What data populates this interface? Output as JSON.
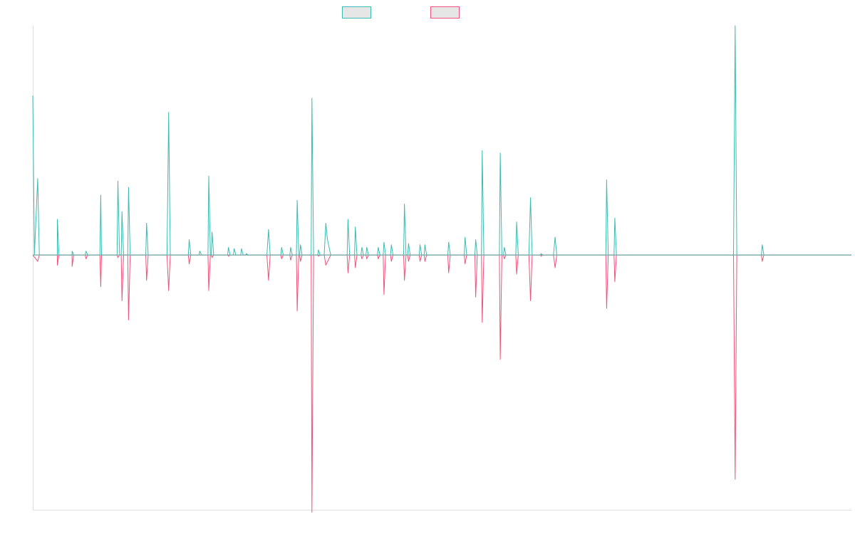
{
  "chart_data": {
    "type": "line",
    "title": "",
    "xlabel": "",
    "ylabel": "",
    "legend_position": "top-center",
    "grid": false,
    "xlim": [
      0,
      100
    ],
    "ylim": [
      -200,
      180
    ],
    "baseline": 0,
    "series": [
      {
        "color": "#3cbbb1",
        "legend_fill": "#e6e6e6",
        "points": [
          [
            0,
            125
          ],
          [
            0.2,
            0
          ],
          [
            0.6,
            60
          ],
          [
            0.8,
            0
          ],
          [
            3,
            0
          ],
          [
            3.0,
            28
          ],
          [
            3.2,
            0
          ],
          [
            4.8,
            0
          ],
          [
            4.8,
            3
          ],
          [
            5.0,
            0
          ],
          [
            6.4,
            0
          ],
          [
            6.5,
            3
          ],
          [
            6.7,
            0
          ],
          [
            8.2,
            0
          ],
          [
            8.3,
            47
          ],
          [
            8.4,
            0
          ],
          [
            10.3,
            0
          ],
          [
            10.4,
            58
          ],
          [
            10.6,
            0
          ],
          [
            10.8,
            0
          ],
          [
            10.9,
            34
          ],
          [
            11.1,
            0
          ],
          [
            11.6,
            0
          ],
          [
            11.7,
            53
          ],
          [
            11.9,
            0
          ],
          [
            13.8,
            0
          ],
          [
            13.9,
            25
          ],
          [
            14.1,
            0
          ],
          [
            16.4,
            0
          ],
          [
            16.6,
            112
          ],
          [
            16.8,
            0
          ],
          [
            19.0,
            0
          ],
          [
            19.1,
            12
          ],
          [
            19.3,
            0
          ],
          [
            20.3,
            0
          ],
          [
            20.4,
            3
          ],
          [
            20.6,
            0
          ],
          [
            21.4,
            0
          ],
          [
            21.5,
            62
          ],
          [
            21.7,
            0
          ],
          [
            21.8,
            0
          ],
          [
            21.9,
            18
          ],
          [
            22.1,
            0
          ],
          [
            23.8,
            0
          ],
          [
            23.9,
            6
          ],
          [
            24.1,
            0
          ],
          [
            24.5,
            0
          ],
          [
            24.6,
            5
          ],
          [
            24.8,
            0
          ],
          [
            25.4,
            0
          ],
          [
            25.5,
            5
          ],
          [
            25.7,
            0
          ],
          [
            26.0,
            0
          ],
          [
            26.1,
            1
          ],
          [
            26.3,
            0
          ],
          [
            28.6,
            0
          ],
          [
            28.8,
            20
          ],
          [
            29.0,
            0
          ],
          [
            30.3,
            0
          ],
          [
            30.4,
            6
          ],
          [
            30.6,
            0
          ],
          [
            31.4,
            0
          ],
          [
            31.5,
            6
          ],
          [
            31.7,
            0
          ],
          [
            32.2,
            0
          ],
          [
            32.3,
            43
          ],
          [
            32.5,
            0
          ],
          [
            32.6,
            0
          ],
          [
            32.7,
            8
          ],
          [
            32.9,
            0
          ],
          [
            34.0,
            0
          ],
          [
            34.1,
            123
          ],
          [
            34.3,
            0
          ],
          [
            34.8,
            0
          ],
          [
            34.9,
            4
          ],
          [
            35.1,
            0
          ],
          [
            35.6,
            0
          ],
          [
            35.8,
            25
          ],
          [
            36.0,
            12
          ],
          [
            36.4,
            0
          ],
          [
            38.4,
            0
          ],
          [
            38.5,
            28
          ],
          [
            38.7,
            0
          ],
          [
            39.3,
            0
          ],
          [
            39.4,
            22
          ],
          [
            39.6,
            0
          ],
          [
            40.1,
            0
          ],
          [
            40.2,
            6
          ],
          [
            40.4,
            0
          ],
          [
            40.7,
            0
          ],
          [
            40.8,
            6
          ],
          [
            41.0,
            0
          ],
          [
            42.1,
            0
          ],
          [
            42.2,
            6
          ],
          [
            42.4,
            0
          ],
          [
            42.8,
            0
          ],
          [
            42.9,
            10
          ],
          [
            43.1,
            0
          ],
          [
            43.7,
            0
          ],
          [
            43.8,
            8
          ],
          [
            44.0,
            0
          ],
          [
            45.3,
            0
          ],
          [
            45.4,
            40
          ],
          [
            45.6,
            0
          ],
          [
            45.8,
            0
          ],
          [
            45.9,
            9
          ],
          [
            46.1,
            0
          ],
          [
            47.2,
            0
          ],
          [
            47.3,
            8
          ],
          [
            47.5,
            0
          ],
          [
            47.8,
            0
          ],
          [
            47.9,
            8
          ],
          [
            48.1,
            0
          ],
          [
            50.7,
            0
          ],
          [
            50.8,
            10
          ],
          [
            51.0,
            0
          ],
          [
            52.7,
            0
          ],
          [
            52.8,
            14
          ],
          [
            53.0,
            0
          ],
          [
            54.0,
            0
          ],
          [
            54.1,
            12
          ],
          [
            54.3,
            0
          ],
          [
            54.8,
            0
          ],
          [
            54.9,
            82
          ],
          [
            55.1,
            0
          ],
          [
            57.0,
            0
          ],
          [
            57.1,
            80
          ],
          [
            57.3,
            0
          ],
          [
            57.5,
            0
          ],
          [
            57.6,
            6
          ],
          [
            57.8,
            0
          ],
          [
            59.0,
            0
          ],
          [
            59.1,
            26
          ],
          [
            59.3,
            0
          ],
          [
            60.6,
            0
          ],
          [
            60.8,
            45
          ],
          [
            61.0,
            0
          ],
          [
            62.0,
            0
          ],
          [
            62.1,
            1
          ],
          [
            62.3,
            0
          ],
          [
            63.6,
            0
          ],
          [
            63.8,
            14
          ],
          [
            64.0,
            0
          ],
          [
            70.0,
            0
          ],
          [
            70.1,
            59
          ],
          [
            70.3,
            0
          ],
          [
            71.0,
            0
          ],
          [
            71.1,
            29
          ],
          [
            71.3,
            0
          ],
          [
            85.6,
            0
          ],
          [
            85.8,
            180
          ],
          [
            86.0,
            0
          ],
          [
            89.0,
            0
          ],
          [
            89.1,
            8
          ],
          [
            89.3,
            0
          ],
          [
            100,
            0
          ]
        ]
      },
      {
        "color": "#f0537b",
        "legend_fill": "#e6e6e6",
        "points": [
          [
            0,
            0
          ],
          [
            0.6,
            -5
          ],
          [
            0.8,
            0
          ],
          [
            3,
            0
          ],
          [
            3.0,
            -8
          ],
          [
            3.2,
            0
          ],
          [
            4.8,
            0
          ],
          [
            4.8,
            -9
          ],
          [
            5.0,
            0
          ],
          [
            6.4,
            0
          ],
          [
            6.5,
            -3
          ],
          [
            6.7,
            0
          ],
          [
            8.2,
            0
          ],
          [
            8.3,
            -25
          ],
          [
            8.4,
            0
          ],
          [
            10.3,
            0
          ],
          [
            10.4,
            -2
          ],
          [
            10.6,
            0
          ],
          [
            10.8,
            0
          ],
          [
            10.9,
            -36
          ],
          [
            11.1,
            0
          ],
          [
            11.6,
            0
          ],
          [
            11.7,
            -51
          ],
          [
            11.9,
            0
          ],
          [
            13.8,
            0
          ],
          [
            13.9,
            -20
          ],
          [
            14.1,
            0
          ],
          [
            16.4,
            0
          ],
          [
            16.6,
            -28
          ],
          [
            16.8,
            0
          ],
          [
            19.0,
            0
          ],
          [
            19.1,
            -7
          ],
          [
            19.3,
            0
          ],
          [
            21.4,
            0
          ],
          [
            21.5,
            -28
          ],
          [
            21.7,
            0
          ],
          [
            21.8,
            0
          ],
          [
            21.9,
            -2
          ],
          [
            22.1,
            0
          ],
          [
            23.8,
            0
          ],
          [
            23.9,
            -1
          ],
          [
            24.1,
            0
          ],
          [
            28.6,
            0
          ],
          [
            28.8,
            -20
          ],
          [
            29.0,
            0
          ],
          [
            30.3,
            0
          ],
          [
            30.4,
            -3
          ],
          [
            30.6,
            0
          ],
          [
            31.4,
            0
          ],
          [
            31.5,
            -4
          ],
          [
            31.7,
            0
          ],
          [
            32.2,
            0
          ],
          [
            32.3,
            -44
          ],
          [
            32.5,
            0
          ],
          [
            32.6,
            0
          ],
          [
            32.7,
            -5
          ],
          [
            32.9,
            0
          ],
          [
            34.0,
            0
          ],
          [
            34.1,
            -202
          ],
          [
            34.3,
            0
          ],
          [
            34.8,
            0
          ],
          [
            34.9,
            -1
          ],
          [
            35.1,
            0
          ],
          [
            35.6,
            0
          ],
          [
            35.8,
            -8
          ],
          [
            36.4,
            0
          ],
          [
            38.4,
            0
          ],
          [
            38.5,
            -14
          ],
          [
            38.7,
            0
          ],
          [
            39.3,
            0
          ],
          [
            39.4,
            -10
          ],
          [
            39.6,
            0
          ],
          [
            40.1,
            0
          ],
          [
            40.2,
            -3
          ],
          [
            40.4,
            0
          ],
          [
            40.7,
            0
          ],
          [
            40.8,
            -3
          ],
          [
            41.0,
            0
          ],
          [
            42.1,
            0
          ],
          [
            42.2,
            -3
          ],
          [
            42.4,
            0
          ],
          [
            42.8,
            0
          ],
          [
            42.9,
            -31
          ],
          [
            43.1,
            0
          ],
          [
            43.7,
            0
          ],
          [
            43.8,
            -5
          ],
          [
            44.0,
            0
          ],
          [
            45.3,
            0
          ],
          [
            45.4,
            -20
          ],
          [
            45.6,
            0
          ],
          [
            45.8,
            0
          ],
          [
            45.9,
            -5
          ],
          [
            46.1,
            0
          ],
          [
            47.2,
            0
          ],
          [
            47.3,
            -5
          ],
          [
            47.5,
            0
          ],
          [
            47.8,
            0
          ],
          [
            47.9,
            -5
          ],
          [
            48.1,
            0
          ],
          [
            50.7,
            0
          ],
          [
            50.8,
            -14
          ],
          [
            51.0,
            0
          ],
          [
            52.7,
            0
          ],
          [
            52.8,
            -7
          ],
          [
            53.0,
            0
          ],
          [
            54.0,
            0
          ],
          [
            54.1,
            -33
          ],
          [
            54.3,
            0
          ],
          [
            54.8,
            0
          ],
          [
            54.9,
            -53
          ],
          [
            55.1,
            0
          ],
          [
            57.0,
            0
          ],
          [
            57.1,
            -82
          ],
          [
            57.3,
            0
          ],
          [
            57.5,
            0
          ],
          [
            57.6,
            -3
          ],
          [
            57.8,
            0
          ],
          [
            59.0,
            0
          ],
          [
            59.1,
            -15
          ],
          [
            59.3,
            0
          ],
          [
            60.6,
            0
          ],
          [
            60.8,
            -36
          ],
          [
            61.0,
            0
          ],
          [
            62.0,
            0
          ],
          [
            62.1,
            -1
          ],
          [
            62.3,
            0
          ],
          [
            63.6,
            0
          ],
          [
            63.8,
            -10
          ],
          [
            64.0,
            0
          ],
          [
            70.0,
            0
          ],
          [
            70.1,
            -42
          ],
          [
            70.3,
            0
          ],
          [
            71.0,
            0
          ],
          [
            71.1,
            -21
          ],
          [
            71.3,
            0
          ],
          [
            85.6,
            0
          ],
          [
            85.8,
            -176
          ],
          [
            86.0,
            0
          ],
          [
            89.0,
            0
          ],
          [
            89.1,
            -5
          ],
          [
            89.3,
            0
          ],
          [
            100,
            0
          ]
        ]
      }
    ],
    "axis_color": "#e0e0e0"
  }
}
